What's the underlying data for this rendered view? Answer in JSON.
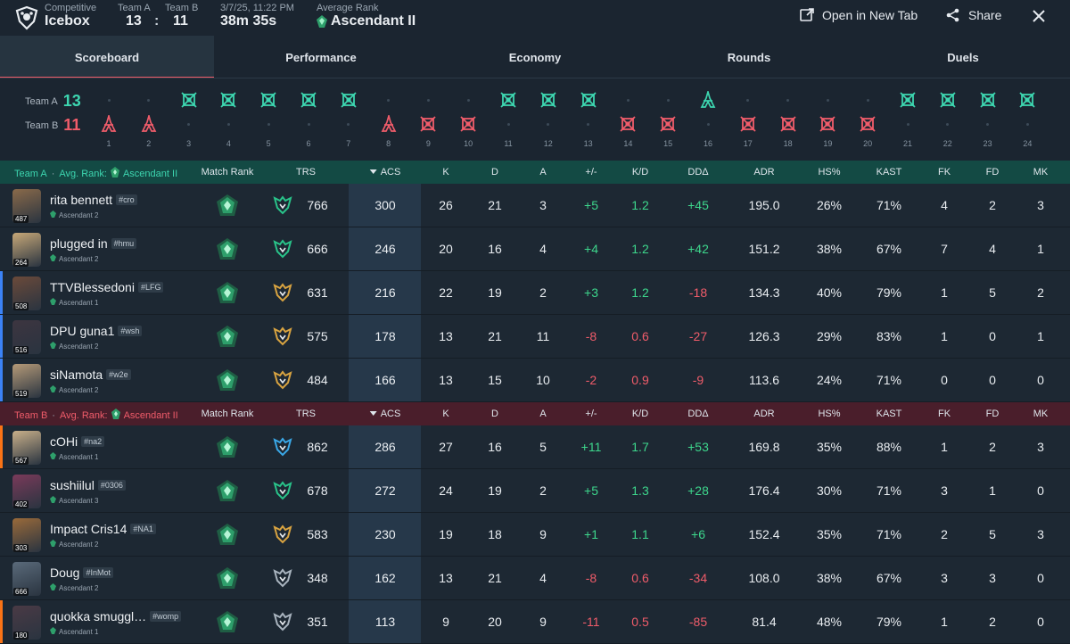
{
  "header": {
    "mode": "Competitive",
    "map": "Icebox",
    "teamA_label": "Team A",
    "teamB_label": "Team B",
    "teamA_score": "13",
    "score_sep": ":",
    "teamB_score": "11",
    "datetime": "3/7/25, 11:22 PM",
    "duration": "38m 35s",
    "avg_rank_label": "Average Rank",
    "avg_rank": "Ascendant II",
    "open_new_tab": "Open in New Tab",
    "share": "Share"
  },
  "tabs": [
    "Scoreboard",
    "Performance",
    "Economy",
    "Rounds",
    "Duels"
  ],
  "timeline": {
    "teamA_label": "Team A",
    "teamA_score": "13",
    "teamB_label": "Team B",
    "teamB_score": "11",
    "rounds": [
      {
        "n": "1",
        "winner": "B",
        "type": "elim"
      },
      {
        "n": "2",
        "winner": "B",
        "type": "elim"
      },
      {
        "n": "3",
        "winner": "A",
        "type": "defuse"
      },
      {
        "n": "4",
        "winner": "A",
        "type": "defuse"
      },
      {
        "n": "5",
        "winner": "A",
        "type": "defuse"
      },
      {
        "n": "6",
        "winner": "A",
        "type": "defuse"
      },
      {
        "n": "7",
        "winner": "A",
        "type": "defuse"
      },
      {
        "n": "8",
        "winner": "B",
        "type": "elim"
      },
      {
        "n": "9",
        "winner": "B",
        "type": "defuse"
      },
      {
        "n": "10",
        "winner": "B",
        "type": "defuse"
      },
      {
        "n": "11",
        "winner": "A",
        "type": "defuse"
      },
      {
        "n": "12",
        "winner": "A",
        "type": "defuse"
      },
      {
        "n": "13",
        "winner": "A",
        "type": "defuse"
      },
      {
        "n": "14",
        "winner": "B",
        "type": "defuse"
      },
      {
        "n": "15",
        "winner": "B",
        "type": "defuse"
      },
      {
        "n": "16",
        "winner": "A",
        "type": "elim"
      },
      {
        "n": "17",
        "winner": "B",
        "type": "defuse"
      },
      {
        "n": "18",
        "winner": "B",
        "type": "defuse"
      },
      {
        "n": "19",
        "winner": "B",
        "type": "defuse"
      },
      {
        "n": "20",
        "winner": "B",
        "type": "defuse"
      },
      {
        "n": "21",
        "winner": "A",
        "type": "defuse"
      },
      {
        "n": "22",
        "winner": "A",
        "type": "defuse"
      },
      {
        "n": "23",
        "winner": "A",
        "type": "defuse"
      },
      {
        "n": "24",
        "winner": "A",
        "type": "defuse"
      }
    ]
  },
  "columns": [
    "Match Rank",
    "TRS",
    "ACS",
    "K",
    "D",
    "A",
    "+/-",
    "K/D",
    "DDΔ",
    "ADR",
    "HS%",
    "KAST",
    "FK",
    "FD",
    "MK"
  ],
  "teams": [
    {
      "team_label": "Team A",
      "sep": "·",
      "avg_label": "Avg. Rank:",
      "avg_rank": "Ascendant II",
      "players": [
        {
          "name": "rita bennett",
          "tag": "#cro",
          "rank": "Ascendant 2",
          "level": "487",
          "accent": "",
          "trs_tier": "green",
          "stats": [
            "766",
            "300",
            "26",
            "21",
            "3",
            "+5",
            "1.2",
            "+45",
            "195.0",
            "26%",
            "71%",
            "4",
            "2",
            "3"
          ]
        },
        {
          "name": "plugged in",
          "tag": "#hmu",
          "rank": "Ascendant 2",
          "level": "264",
          "accent": "",
          "trs_tier": "green",
          "stats": [
            "666",
            "246",
            "20",
            "16",
            "4",
            "+4",
            "1.2",
            "+42",
            "151.2",
            "38%",
            "67%",
            "7",
            "4",
            "1"
          ]
        },
        {
          "name": "TTVBlessedoni",
          "tag": "#LFG",
          "rank": "Ascendant 1",
          "level": "508",
          "accent": "#3b82f6",
          "trs_tier": "gold",
          "stats": [
            "631",
            "216",
            "22",
            "19",
            "2",
            "+3",
            "1.2",
            "-18",
            "134.3",
            "40%",
            "79%",
            "1",
            "5",
            "2"
          ]
        },
        {
          "name": "DPU guna1",
          "tag": "#wsh",
          "rank": "Ascendant 2",
          "level": "516",
          "accent": "#3b82f6",
          "trs_tier": "gold",
          "stats": [
            "575",
            "178",
            "13",
            "21",
            "11",
            "-8",
            "0.6",
            "-27",
            "126.3",
            "29%",
            "83%",
            "1",
            "0",
            "1"
          ]
        },
        {
          "name": "siNamota",
          "tag": "#w2e",
          "rank": "Ascendant 2",
          "level": "519",
          "accent": "#3b82f6",
          "trs_tier": "gold",
          "stats": [
            "484",
            "166",
            "13",
            "15",
            "10",
            "-2",
            "0.9",
            "-9",
            "113.6",
            "24%",
            "71%",
            "0",
            "0",
            "0"
          ]
        }
      ]
    },
    {
      "team_label": "Team B",
      "sep": "·",
      "avg_label": "Avg. Rank:",
      "avg_rank": "Ascendant II",
      "players": [
        {
          "name": "cOHi",
          "tag": "#na2",
          "rank": "Ascendant 1",
          "level": "567",
          "accent": "#f97316",
          "trs_tier": "blue",
          "stats": [
            "862",
            "286",
            "27",
            "16",
            "5",
            "+11",
            "1.7",
            "+53",
            "169.8",
            "35%",
            "88%",
            "1",
            "2",
            "3"
          ]
        },
        {
          "name": "sushiilul",
          "tag": "#0306",
          "rank": "Ascendant 3",
          "level": "402",
          "accent": "",
          "trs_tier": "green",
          "stats": [
            "678",
            "272",
            "24",
            "19",
            "2",
            "+5",
            "1.3",
            "+28",
            "176.4",
            "30%",
            "71%",
            "3",
            "1",
            "0"
          ]
        },
        {
          "name": "Impact Cris14",
          "tag": "#NA1",
          "rank": "Ascendant 2",
          "level": "303",
          "accent": "",
          "trs_tier": "gold",
          "stats": [
            "583",
            "230",
            "19",
            "18",
            "9",
            "+1",
            "1.1",
            "+6",
            "152.4",
            "35%",
            "71%",
            "2",
            "5",
            "3"
          ]
        },
        {
          "name": "Doug",
          "tag": "#InMot",
          "rank": "Ascendant 2",
          "level": "666",
          "accent": "",
          "trs_tier": "silver",
          "stats": [
            "348",
            "162",
            "13",
            "21",
            "4",
            "-8",
            "0.6",
            "-34",
            "108.0",
            "38%",
            "67%",
            "3",
            "3",
            "0"
          ]
        },
        {
          "name": "quokka smuggl…",
          "tag": "#womp",
          "rank": "Ascendant 1",
          "level": "180",
          "accent": "#f97316",
          "trs_tier": "silver",
          "stats": [
            "351",
            "113",
            "9",
            "20",
            "9",
            "-11",
            "0.5",
            "-85",
            "81.4",
            "48%",
            "79%",
            "1",
            "2",
            "0"
          ]
        }
      ]
    }
  ],
  "colors": {
    "teamA": "#3dd6b0",
    "teamB": "#f05c6a",
    "positive": "#3dd68c",
    "negative": "#f05c6a",
    "rank_green": "#2e9f6b",
    "trs_green": "#29c48a",
    "trs_gold": "#d9a441",
    "trs_blue": "#3aa8e8",
    "trs_silver": "#a9b4bf"
  }
}
